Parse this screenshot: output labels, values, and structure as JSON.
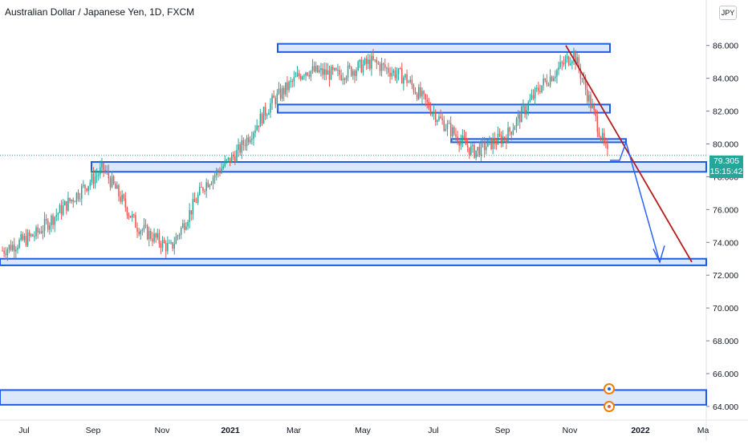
{
  "title": "Australian Dollar / Japanese Yen, 1D, FXCM",
  "currency": "JPY",
  "price_label": {
    "price": "79.305",
    "countdown": "15:15:42"
  },
  "colors": {
    "up": "#26a69a",
    "down": "#ef5350",
    "zone_fill": "#cfe0fb",
    "zone_border": "#1e5ce8",
    "trend_red": "#b71c1c",
    "arrow_blue": "#2962ff",
    "accent": "#26a69a"
  },
  "chart_data": {
    "type": "candlestick",
    "title": "Australian Dollar / Japanese Yen, 1D, FXCM",
    "ylim": [
      63.8,
      87.5
    ],
    "y_ticks": [
      "64.000",
      "66.000",
      "68.000",
      "70.000",
      "72.000",
      "74.000",
      "76.000",
      "78.000",
      "80.000",
      "82.000",
      "84.000",
      "86.000"
    ],
    "x_ticks": [
      "Jul",
      "Sep",
      "Nov",
      "2021",
      "Mar",
      "May",
      "Jul",
      "Sep",
      "Nov",
      "2022",
      "Ma"
    ],
    "axis_position": "right",
    "grid": false,
    "series": [
      {
        "name": "close",
        "x": [
          "2020-06",
          "2020-07",
          "2020-08",
          "2020-09",
          "2020-10",
          "2020-11",
          "2020-12",
          "2021-01",
          "2021-02",
          "2021-03",
          "2021-04",
          "2021-05",
          "2021-06",
          "2021-07",
          "2021-08",
          "2021-09",
          "2021-10",
          "2021-11",
          "2021-12"
        ],
        "values": [
          73.5,
          74.5,
          76.5,
          78.5,
          75.0,
          73.6,
          77.5,
          79.5,
          82.5,
          84.5,
          84.2,
          85.0,
          84.0,
          81.5,
          79.5,
          80.5,
          83.5,
          85.5,
          79.3
        ]
      }
    ],
    "zones": [
      {
        "from": 85.6,
        "to": 86.1
      },
      {
        "from": 81.9,
        "to": 82.4
      },
      {
        "from": 80.1,
        "to": 80.3
      },
      {
        "from": 78.3,
        "to": 78.9
      },
      {
        "from": 72.6,
        "to": 73.0
      },
      {
        "from": 64.1,
        "to": 65.0
      }
    ],
    "last_price": 79.305
  }
}
